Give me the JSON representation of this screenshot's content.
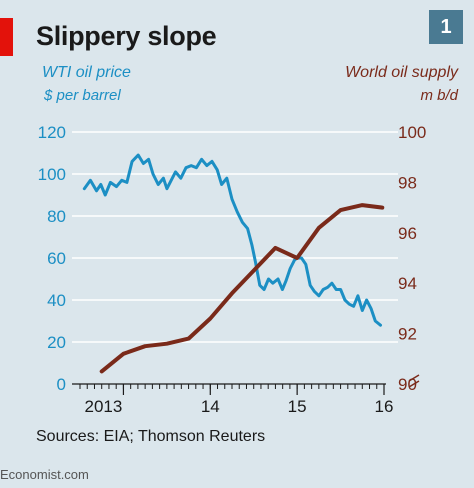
{
  "header": {
    "title": "Slippery slope",
    "badge": "1"
  },
  "footer": {
    "source": "Sources: EIA; Thomson Reuters",
    "brand": "Economist.com"
  },
  "colors": {
    "background": "#dbe6ec",
    "price_line": "#1c8fc4",
    "supply_line": "#7a2a1a",
    "accent_red": "#e3120b",
    "badge": "#4a7a92",
    "grid": "#ffffff"
  },
  "chart_data": {
    "type": "line",
    "axes": {
      "left": {
        "label": "WTI oil price",
        "unit": "$ per barrel",
        "ylim": [
          0,
          120
        ],
        "ticks": [
          0,
          20,
          40,
          60,
          80,
          100,
          120
        ]
      },
      "right": {
        "label": "World oil supply",
        "unit": "m b/d",
        "ylim": [
          90,
          100
        ],
        "ticks": [
          90,
          92,
          94,
          96,
          98,
          100
        ],
        "broken_axis": true
      },
      "x": {
        "xlim": [
          2012.5,
          2016.0
        ],
        "tick_labels": [
          "2013",
          "14",
          "15",
          "16"
        ],
        "tick_label_positions": [
          2013.0,
          2014.0,
          2015.0,
          2016.0
        ]
      }
    },
    "grid": true,
    "series": [
      {
        "name": "WTI oil price",
        "axis": "left",
        "x": [
          2012.55,
          2012.62,
          2012.69,
          2012.74,
          2012.79,
          2012.85,
          2012.92,
          2012.98,
          2013.04,
          2013.1,
          2013.17,
          2013.23,
          2013.29,
          2013.34,
          2013.4,
          2013.46,
          2013.5,
          2013.55,
          2013.6,
          2013.66,
          2013.72,
          2013.78,
          2013.84,
          2013.9,
          2013.96,
          2014.02,
          2014.08,
          2014.13,
          2014.19,
          2014.25,
          2014.31,
          2014.37,
          2014.43,
          2014.48,
          2014.52,
          2014.57,
          2014.62,
          2014.67,
          2014.72,
          2014.78,
          2014.83,
          2014.87,
          2014.92,
          2014.97,
          2015.0,
          2015.05,
          2015.1,
          2015.15,
          2015.2,
          2015.25,
          2015.3,
          2015.35,
          2015.4,
          2015.45,
          2015.5,
          2015.55,
          2015.6,
          2015.65,
          2015.7,
          2015.75,
          2015.8,
          2015.85,
          2015.9,
          2015.96
        ],
        "values": [
          93,
          97,
          92,
          95,
          90,
          96,
          94,
          97,
          96,
          106,
          109,
          105,
          107,
          100,
          95,
          98,
          93,
          97,
          101,
          98,
          103,
          104,
          103,
          107,
          104,
          106,
          102,
          95,
          98,
          88,
          82,
          77,
          74,
          66,
          58,
          47,
          45,
          50,
          48,
          50,
          45,
          49,
          55,
          59,
          60,
          60,
          57,
          47,
          44,
          42,
          45,
          46,
          48,
          45,
          45,
          40,
          38,
          37,
          42,
          35,
          40,
          36,
          30,
          28
        ],
        "color": "#1c8fc4"
      },
      {
        "name": "World oil supply",
        "axis": "right",
        "x": [
          2012.75,
          2013.0,
          2013.25,
          2013.5,
          2013.75,
          2014.0,
          2014.25,
          2014.5,
          2014.75,
          2015.0,
          2015.25,
          2015.5,
          2015.75,
          2015.98
        ],
        "values": [
          90.5,
          91.2,
          91.5,
          91.6,
          91.8,
          92.6,
          93.6,
          94.5,
          95.4,
          95.0,
          96.2,
          96.9,
          97.1,
          97.0
        ],
        "color": "#7a2a1a"
      }
    ]
  }
}
